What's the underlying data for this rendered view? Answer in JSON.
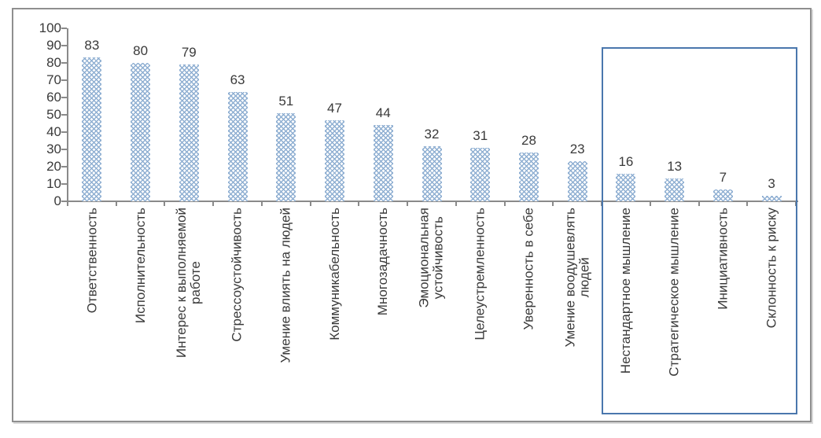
{
  "window": {
    "background": "#ffffff"
  },
  "colors": {
    "bar": "#8fafd2",
    "highlight_border": "#4a77ad",
    "axis": "#8a8a8a",
    "text": "#3a3a3a",
    "frame_border": "#8f8f8f",
    "frame_shadow": "#d9d9d9",
    "background": "#ffffff"
  },
  "chart_data": {
    "type": "bar",
    "title": "",
    "xlabel": "",
    "ylabel": "",
    "categories": [
      "Ответственность",
      "Исполнительность",
      "Интерес к выполняемой\nработе",
      "Стрессоустойчивость",
      "Умение влиять на людей",
      "Коммуникабельность",
      "Многозадачность",
      "Эмоциональная\nустойчивость",
      "Целеустремленность",
      "Уверенность в себе",
      "Умение воодушевлять\nлюдей",
      "Нестандартное мышление",
      "Стратегическое мышление",
      "Инициативность",
      "Склонность к риску"
    ],
    "values": [
      83,
      80,
      79,
      63,
      51,
      47,
      44,
      32,
      31,
      28,
      23,
      16,
      13,
      7,
      3
    ],
    "ylim": [
      0,
      100
    ],
    "ytick_step": 10,
    "yticks": [
      0,
      10,
      20,
      30,
      40,
      50,
      60,
      70,
      80,
      90,
      100
    ],
    "grid": false,
    "legend": false,
    "data_labels_shown": true,
    "bar_pattern": "diagonal-crosshatch",
    "category_labels_rotation_degrees": -90,
    "highlight_box": {
      "start_index": 11,
      "end_index": 14,
      "categories": [
        "Нестандартное мышление",
        "Стратегическое мышление",
        "Инициативность",
        "Склонность к риску"
      ]
    }
  }
}
